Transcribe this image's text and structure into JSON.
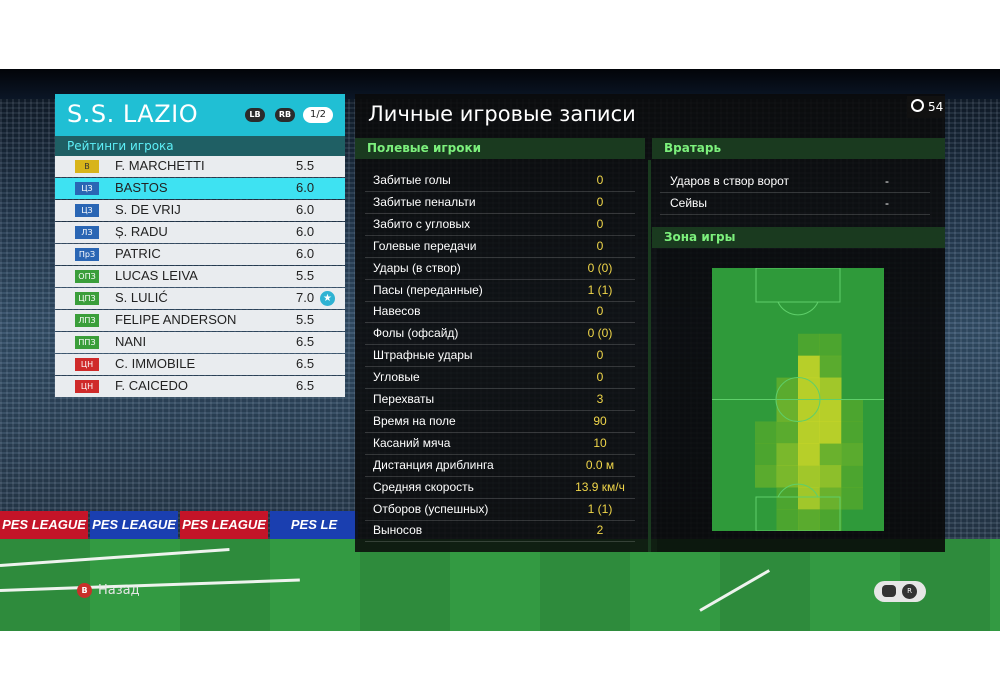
{
  "team": {
    "name": "S.S. LAZIO",
    "lb_icon": "LB",
    "rb_icon": "RB",
    "page": "1/2"
  },
  "ratings": {
    "header": "Рейтинги игрока",
    "players": [
      {
        "pos": "В",
        "pos_group": "gk",
        "name": "F. MARCHETTI",
        "rating": "5.5"
      },
      {
        "pos": "ЦЗ",
        "pos_group": "df",
        "name": "BASTOS",
        "rating": "6.0",
        "selected": true
      },
      {
        "pos": "ЦЗ",
        "pos_group": "df",
        "name": "S. DE VRIJ",
        "rating": "6.0"
      },
      {
        "pos": "ЛЗ",
        "pos_group": "df",
        "name": "Ș. RADU",
        "rating": "6.0"
      },
      {
        "pos": "ПрЗ",
        "pos_group": "df",
        "name": "PATRIC",
        "rating": "6.0"
      },
      {
        "pos": "ОПЗ",
        "pos_group": "mf",
        "name": "LUCAS LEIVA",
        "rating": "5.5"
      },
      {
        "pos": "ЦПЗ",
        "pos_group": "mf",
        "name": "S. LULIĆ",
        "rating": "7.0",
        "star": true
      },
      {
        "pos": "ЛПЗ",
        "pos_group": "mf",
        "name": "FELIPE ANDERSON",
        "rating": "5.5"
      },
      {
        "pos": "ППЗ",
        "pos_group": "mf",
        "name": "NANI",
        "rating": "6.5"
      },
      {
        "pos": "ЦН",
        "pos_group": "fw",
        "name": "C. IMMOBILE",
        "rating": "6.5"
      },
      {
        "pos": "ЦН",
        "pos_group": "fw",
        "name": "F. CAICEDO",
        "rating": "6.5"
      }
    ]
  },
  "records": {
    "title": "Личные игровые записи",
    "timer": "54",
    "outfield_header": "Полевые игроки",
    "outfield": [
      {
        "label": "Забитые голы",
        "value": "0"
      },
      {
        "label": "Забитые пенальти",
        "value": "0"
      },
      {
        "label": "Забито с угловых",
        "value": "0"
      },
      {
        "label": "Голевые передачи",
        "value": "0"
      },
      {
        "label": "Удары (в створ)",
        "value": "0 (0)"
      },
      {
        "label": "Пасы (переданные)",
        "value": "1 (1)"
      },
      {
        "label": "Навесов",
        "value": "0"
      },
      {
        "label": "Фолы (офсайд)",
        "value": "0 (0)"
      },
      {
        "label": "Штрафные удары",
        "value": "0"
      },
      {
        "label": "Угловые",
        "value": "0"
      },
      {
        "label": "Перехваты",
        "value": "3"
      },
      {
        "label": "Время на поле",
        "value": "90"
      },
      {
        "label": "Касаний мяча",
        "value": "10"
      },
      {
        "label": "Дистанция дриблинга",
        "value": "0.0 м"
      },
      {
        "label": "Средняя скорость",
        "value": "13.9 км/ч"
      },
      {
        "label": "Отборов (успешных)",
        "value": "1 (1)"
      },
      {
        "label": "Выносов",
        "value": "2"
      }
    ],
    "gk_header": "Вратарь",
    "goalkeeper": [
      {
        "label": "Ударов в створ ворот",
        "value": "-"
      },
      {
        "label": "Сейвы",
        "value": "-"
      }
    ],
    "zone_header": "Зона игры"
  },
  "ads": [
    "PES LEAGUE",
    "PES LEAGUE",
    "PES LEAGUE",
    "PES LE"
  ],
  "footer": {
    "back_button_icon": "B",
    "back_label": "Назад",
    "rs_icon": "R"
  },
  "colors": {
    "accent": "#20bfd4",
    "selected_row": "#3ee2f2",
    "value_yellow": "#f0d64a",
    "section_green": "#7cf07c"
  }
}
